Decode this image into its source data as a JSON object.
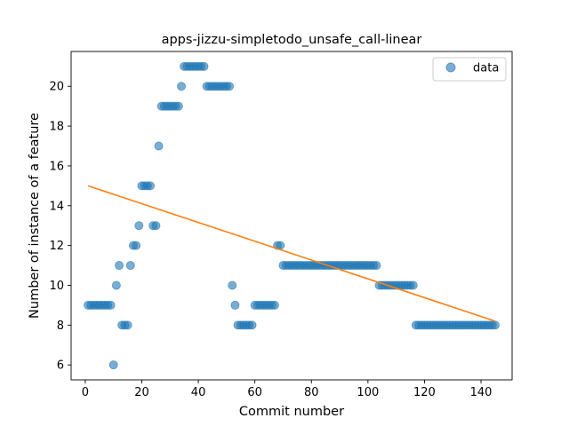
{
  "chart_data": {
    "type": "scatter",
    "title": "apps-jizzu-simpletodo_unsafe_call-linear",
    "xlabel": "Commit number",
    "ylabel": "Number of instance of a feature",
    "xlim": [
      -5,
      151
    ],
    "ylim": [
      5.25,
      21.75
    ],
    "xticks": [
      0,
      20,
      40,
      60,
      80,
      100,
      120,
      140
    ],
    "yticks": [
      6,
      8,
      10,
      12,
      14,
      16,
      18,
      20
    ],
    "legend": {
      "position": "top-right",
      "entries": [
        "data"
      ]
    },
    "colors": {
      "data": "#1f77b4",
      "fit": "#ff7f0e"
    },
    "series": [
      {
        "name": "data",
        "kind": "scatter",
        "x": [
          1,
          2,
          3,
          4,
          5,
          6,
          7,
          8,
          9,
          10,
          11,
          12,
          13,
          14,
          15,
          16,
          17,
          18,
          19,
          20,
          21,
          22,
          23,
          24,
          25,
          26,
          27,
          28,
          29,
          30,
          31,
          32,
          33,
          34,
          35,
          36,
          37,
          38,
          39,
          40,
          41,
          42,
          43,
          44,
          45,
          46,
          47,
          48,
          49,
          50,
          51,
          52,
          53,
          54,
          55,
          56,
          57,
          58,
          59,
          60,
          61,
          62,
          63,
          64,
          65,
          66,
          67,
          68,
          69,
          70,
          71,
          72,
          73,
          74,
          75,
          76,
          77,
          78,
          79,
          80,
          81,
          82,
          83,
          84,
          85,
          86,
          87,
          88,
          89,
          90,
          91,
          92,
          93,
          94,
          95,
          96,
          97,
          98,
          99,
          100,
          101,
          102,
          103,
          104,
          105,
          106,
          107,
          108,
          109,
          110,
          111,
          112,
          113,
          114,
          115,
          116,
          117,
          118,
          119,
          120,
          121,
          122,
          123,
          124,
          125,
          126,
          127,
          128,
          129,
          130,
          131,
          132,
          133,
          134,
          135,
          136,
          137,
          138,
          139,
          140,
          141,
          142,
          143,
          144,
          145
        ],
        "y": [
          9,
          9,
          9,
          9,
          9,
          9,
          9,
          9,
          9,
          6,
          10,
          11,
          8,
          8,
          8,
          11,
          12,
          12,
          13,
          15,
          15,
          15,
          15,
          13,
          13,
          17,
          19,
          19,
          19,
          19,
          19,
          19,
          19,
          20,
          21,
          21,
          21,
          21,
          21,
          21,
          21,
          21,
          20,
          20,
          20,
          20,
          20,
          20,
          20,
          20,
          20,
          10,
          9,
          8,
          8,
          8,
          8,
          8,
          8,
          9,
          9,
          9,
          9,
          9,
          9,
          9,
          9,
          12,
          12,
          11,
          11,
          11,
          11,
          11,
          11,
          11,
          11,
          11,
          11,
          11,
          11,
          11,
          11,
          11,
          11,
          11,
          11,
          11,
          11,
          11,
          11,
          11,
          11,
          11,
          11,
          11,
          11,
          11,
          11,
          11,
          11,
          11,
          11,
          10,
          10,
          10,
          10,
          10,
          10,
          10,
          10,
          10,
          10,
          10,
          10,
          10,
          8,
          8,
          8,
          8,
          8,
          8,
          8,
          8,
          8,
          8,
          8,
          8,
          8,
          8,
          8,
          8,
          8,
          8,
          8,
          8,
          8,
          8,
          8,
          8,
          8,
          8,
          8,
          8,
          8
        ]
      },
      {
        "name": "",
        "kind": "line",
        "x": [
          1,
          145
        ],
        "y": [
          15.0,
          8.2
        ]
      }
    ]
  }
}
